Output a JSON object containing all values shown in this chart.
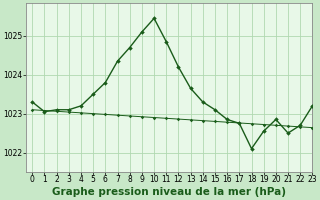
{
  "title": "Graphe pression niveau de la mer (hPa)",
  "background_color": "#c8e8c8",
  "plot_bg_color": "#e8f8e8",
  "grid_color": "#b0d8b0",
  "line_color": "#1a5c1a",
  "xlim": [
    -0.5,
    23
  ],
  "ylim": [
    1021.5,
    1025.85
  ],
  "yticks": [
    1022,
    1023,
    1024,
    1025
  ],
  "xticks": [
    0,
    1,
    2,
    3,
    4,
    5,
    6,
    7,
    8,
    9,
    10,
    11,
    12,
    13,
    14,
    15,
    16,
    17,
    18,
    19,
    20,
    21,
    22,
    23
  ],
  "series1_x": [
    0,
    1,
    2,
    3,
    4,
    5,
    6,
    7,
    8,
    9,
    10,
    11,
    12,
    13,
    14,
    15,
    16,
    17,
    18,
    19,
    20,
    21,
    22,
    23
  ],
  "series1_y": [
    1023.3,
    1023.05,
    1023.1,
    1023.1,
    1023.2,
    1023.5,
    1023.8,
    1024.35,
    1024.7,
    1025.1,
    1025.45,
    1024.85,
    1024.2,
    1023.65,
    1023.3,
    1023.1,
    1022.85,
    1022.75,
    1022.1,
    1022.55,
    1022.85,
    1022.5,
    1022.7,
    1023.2
  ],
  "series2_x": [
    0,
    1,
    2,
    3,
    4,
    5,
    6,
    7,
    8,
    9,
    10,
    11,
    12,
    13,
    14,
    15,
    16,
    17,
    18,
    19,
    20,
    21,
    22,
    23
  ],
  "series2_y": [
    1023.1,
    1023.08,
    1023.06,
    1023.04,
    1023.02,
    1023.0,
    1022.98,
    1022.96,
    1022.94,
    1022.92,
    1022.9,
    1022.88,
    1022.86,
    1022.84,
    1022.82,
    1022.8,
    1022.78,
    1022.76,
    1022.74,
    1022.72,
    1022.7,
    1022.68,
    1022.66,
    1022.64
  ],
  "title_fontsize": 7.5,
  "tick_fontsize": 5.5
}
